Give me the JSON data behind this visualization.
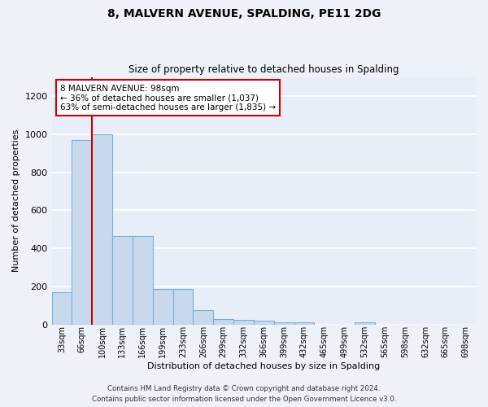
{
  "title1": "8, MALVERN AVENUE, SPALDING, PE11 2DG",
  "title2": "Size of property relative to detached houses in Spalding",
  "xlabel": "Distribution of detached houses by size in Spalding",
  "ylabel": "Number of detached properties",
  "bar_color": "#c8d9ee",
  "bar_edge_color": "#7bafd4",
  "background_color": "#e8eef7",
  "fig_background_color": "#edf2f9",
  "grid_color": "#ffffff",
  "categories": [
    "33sqm",
    "66sqm",
    "100sqm",
    "133sqm",
    "166sqm",
    "199sqm",
    "233sqm",
    "266sqm",
    "299sqm",
    "332sqm",
    "366sqm",
    "399sqm",
    "432sqm",
    "465sqm",
    "499sqm",
    "532sqm",
    "565sqm",
    "598sqm",
    "632sqm",
    "665sqm",
    "698sqm"
  ],
  "values": [
    170,
    970,
    1000,
    465,
    465,
    185,
    185,
    75,
    30,
    25,
    20,
    12,
    12,
    0,
    0,
    12,
    0,
    0,
    0,
    0,
    0
  ],
  "ylim": [
    0,
    1300
  ],
  "yticks": [
    0,
    200,
    400,
    600,
    800,
    1000,
    1200
  ],
  "property_line_x": 1.5,
  "annotation_text": "8 MALVERN AVENUE: 98sqm\n← 36% of detached houses are smaller (1,037)\n63% of semi-detached houses are larger (1,835) →",
  "annotation_box_color": "#ffffff",
  "annotation_box_edge": "#cc0000",
  "red_line_color": "#cc0000",
  "footer1": "Contains HM Land Registry data © Crown copyright and database right 2024.",
  "footer2": "Contains public sector information licensed under the Open Government Licence v3.0."
}
